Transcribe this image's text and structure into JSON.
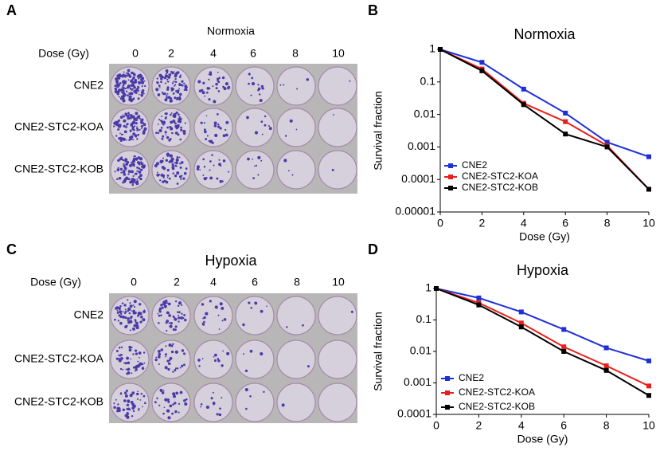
{
  "plate_panels": [
    {
      "panel_label": "A",
      "title": "Normoxia",
      "dose_label": "Dose (Gy)",
      "doses": [
        0,
        2,
        4,
        6,
        8,
        10
      ],
      "rows": [
        "CNE2",
        "CNE2-STC2-KOA",
        "CNE2-STC2-KOB"
      ]
    },
    {
      "panel_label": "C",
      "title": "Hypoxia",
      "dose_label": "Dose (Gy)",
      "doses": [
        0,
        2,
        4,
        6,
        8,
        10
      ],
      "rows": [
        "CNE2",
        "CNE2-STC2-KOA",
        "CNE2-STC2-KOB"
      ]
    }
  ],
  "chart_data": [
    {
      "type": "line",
      "panel_label": "B",
      "title": "Normoxia",
      "xlabel": "Dose (Gy)",
      "ylabel": "Survival fraction",
      "log_y": true,
      "legend": "lower-left",
      "x": [
        0,
        2,
        4,
        6,
        8,
        10
      ],
      "xlim": [
        0,
        10
      ],
      "xticks": [
        0,
        2,
        4,
        6,
        8,
        10
      ],
      "ylim": [
        1e-05,
        1
      ],
      "yticks": [
        1,
        0.1,
        0.01,
        0.001,
        0.0001,
        1e-05
      ],
      "series": [
        {
          "name": "CNE2",
          "color": "#1f2fd8",
          "values": [
            1,
            0.4,
            0.06,
            0.011,
            0.0014,
            0.0005
          ]
        },
        {
          "name": "CNE2-STC2-KOA",
          "color": "#e8201c",
          "values": [
            1,
            0.25,
            0.022,
            0.006,
            0.0011,
            5e-05
          ]
        },
        {
          "name": "CNE2-STC2-KOB",
          "color": "#000000",
          "values": [
            1,
            0.22,
            0.02,
            0.0025,
            0.001,
            5e-05
          ]
        }
      ]
    },
    {
      "type": "line",
      "panel_label": "D",
      "title": "Hypoxia",
      "xlabel": "Dose (Gy)",
      "ylabel": "Survival fraction",
      "log_y": true,
      "legend": "lower-left",
      "x": [
        0,
        2,
        4,
        6,
        8,
        10
      ],
      "xlim": [
        0,
        10
      ],
      "xticks": [
        0,
        2,
        4,
        6,
        8,
        10
      ],
      "ylim": [
        0.0001,
        1
      ],
      "yticks": [
        1,
        0.1,
        0.01,
        0.001,
        0.0001
      ],
      "series": [
        {
          "name": "CNE2",
          "color": "#1f2fd8",
          "values": [
            1,
            0.5,
            0.18,
            0.05,
            0.013,
            0.005
          ]
        },
        {
          "name": "CNE2-STC2-KOA",
          "color": "#e8201c",
          "values": [
            1,
            0.35,
            0.08,
            0.014,
            0.0035,
            0.0008
          ]
        },
        {
          "name": "CNE2-STC2-KOB",
          "color": "#000000",
          "values": [
            1,
            0.3,
            0.06,
            0.01,
            0.0025,
            0.0004
          ]
        }
      ]
    }
  ]
}
